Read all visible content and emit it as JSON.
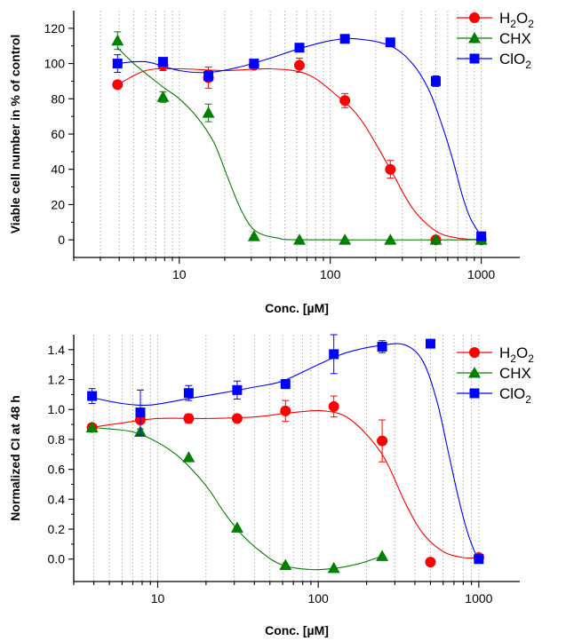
{
  "chart_data": [
    {
      "type": "scatter",
      "xscale": "log",
      "xlim": [
        2,
        1800
      ],
      "ylim": [
        -10,
        130
      ],
      "yticks": [
        0,
        20,
        40,
        60,
        80,
        100,
        120
      ],
      "xticks": [
        10,
        100,
        1000
      ],
      "xtick_labels": [
        "10",
        "100",
        "1000"
      ],
      "xlabel": "Conc. [µM]",
      "ylabel": "Viable cell number in % of control",
      "grid": "vertical minor log lines, dotted",
      "legend": "top-right",
      "series": [
        {
          "name": "H2O2",
          "label_main": "H",
          "label_sub1": "2",
          "label_mid": "O",
          "label_sub2": "2",
          "color": "#ff0000",
          "marker": "circle",
          "x": [
            3.9,
            7.8,
            15.6,
            31.25,
            62.5,
            125,
            250,
            500,
            1000
          ],
          "y": [
            88,
            99,
            92,
            99,
            99,
            79,
            40,
            0,
            0
          ],
          "err": [
            0,
            3,
            6,
            2,
            4,
            4,
            5,
            0,
            0
          ],
          "fit": [
            [
              3.9,
              88
            ],
            [
              6,
              96
            ],
            [
              10,
              97
            ],
            [
              20,
              96
            ],
            [
              40,
              97
            ],
            [
              70,
              94
            ],
            [
              110,
              82
            ],
            [
              160,
              68
            ],
            [
              250,
              40
            ],
            [
              350,
              18
            ],
            [
              500,
              5
            ],
            [
              700,
              1
            ],
            [
              1000,
              0
            ]
          ]
        },
        {
          "name": "CHX",
          "label_main": "CHX",
          "color": "#008000",
          "marker": "triangle",
          "x": [
            3.9,
            7.8,
            15.6,
            31.25,
            62.5,
            125,
            250,
            500,
            1000
          ],
          "y": [
            113,
            81,
            72,
            2,
            0,
            0,
            0,
            0,
            0
          ],
          "err": [
            5,
            3,
            5,
            0,
            0,
            0,
            0,
            0,
            0
          ],
          "fit": [
            [
              3.9,
              109
            ],
            [
              5,
              100
            ],
            [
              6.5,
              92
            ],
            [
              8,
              86
            ],
            [
              10,
              80
            ],
            [
              13,
              70
            ],
            [
              17,
              55
            ],
            [
              21,
              35
            ],
            [
              26,
              16
            ],
            [
              32,
              5
            ],
            [
              45,
              1
            ],
            [
              70,
              0
            ],
            [
              1000,
              0
            ]
          ]
        },
        {
          "name": "ClO2",
          "label_main": "ClO",
          "label_sub1": "2",
          "color": "#0000ff",
          "marker": "square",
          "x": [
            3.9,
            7.8,
            15.6,
            31.25,
            62.5,
            125,
            250,
            500,
            1000
          ],
          "y": [
            100,
            101,
            93,
            100,
            109,
            114,
            112,
            90,
            2
          ],
          "err": [
            5,
            2,
            3,
            2,
            1,
            1,
            1,
            3,
            0
          ],
          "fit": [
            [
              3.9,
              100
            ],
            [
              6,
              101
            ],
            [
              10,
              96
            ],
            [
              16,
              95
            ],
            [
              25,
              98
            ],
            [
              40,
              103
            ],
            [
              60,
              108
            ],
            [
              100,
              113
            ],
            [
              150,
              114
            ],
            [
              250,
              110
            ],
            [
              350,
              100
            ],
            [
              450,
              85
            ],
            [
              550,
              65
            ],
            [
              650,
              45
            ],
            [
              750,
              25
            ],
            [
              850,
              12
            ],
            [
              1000,
              2
            ]
          ]
        }
      ]
    },
    {
      "type": "scatter",
      "xscale": "log",
      "xlim": [
        3,
        1800
      ],
      "ylim": [
        -0.15,
        1.5
      ],
      "yticks": [
        0.0,
        0.2,
        0.4,
        0.6,
        0.8,
        1.0,
        1.2,
        1.4
      ],
      "ytick_labels": [
        "0.0",
        "0.2",
        "0.4",
        "0.6",
        "0.8",
        "1.0",
        "1.2",
        "1.4"
      ],
      "xticks": [
        10,
        100,
        1000
      ],
      "xtick_labels": [
        "10",
        "100",
        "1000"
      ],
      "xlabel": "Conc. [µM]",
      "ylabel": "Normalized CI at 48 h",
      "grid": "vertical minor log lines, dotted",
      "legend": "top-right",
      "series": [
        {
          "name": "H2O2",
          "label_main": "H",
          "label_sub1": "2",
          "label_mid": "O",
          "label_sub2": "2",
          "color": "#ff0000",
          "marker": "circle",
          "x": [
            3.9,
            7.8,
            15.6,
            31.25,
            62.5,
            125,
            250,
            500,
            1000
          ],
          "y": [
            0.88,
            0.93,
            0.94,
            0.94,
            0.99,
            1.02,
            0.79,
            -0.02,
            0.01
          ],
          "err": [
            0.01,
            0.02,
            0.03,
            0.02,
            0.07,
            0.07,
            0.14,
            0,
            0
          ],
          "fit": [
            [
              3.9,
              0.88
            ],
            [
              6,
              0.91
            ],
            [
              10,
              0.94
            ],
            [
              20,
              0.94
            ],
            [
              40,
              0.95
            ],
            [
              70,
              0.98
            ],
            [
              110,
              0.99
            ],
            [
              160,
              0.93
            ],
            [
              250,
              0.7
            ],
            [
              350,
              0.37
            ],
            [
              450,
              0.17
            ],
            [
              600,
              0.05
            ],
            [
              800,
              0.01
            ],
            [
              1000,
              0.01
            ]
          ]
        },
        {
          "name": "CHX",
          "label_main": "CHX",
          "color": "#008000",
          "marker": "triangle",
          "x": [
            3.9,
            7.8,
            15.6,
            31.25,
            62.5,
            125,
            250
          ],
          "y": [
            0.88,
            0.85,
            0.68,
            0.21,
            -0.04,
            -0.06,
            0.02
          ],
          "err": [
            0,
            0.02,
            0,
            0,
            0,
            0,
            0
          ],
          "fit": [
            [
              3.9,
              0.88
            ],
            [
              5,
              0.87
            ],
            [
              7,
              0.85
            ],
            [
              10,
              0.78
            ],
            [
              14,
              0.67
            ],
            [
              20,
              0.49
            ],
            [
              26,
              0.31
            ],
            [
              33,
              0.17
            ],
            [
              45,
              0.04
            ],
            [
              60,
              -0.04
            ],
            [
              90,
              -0.07
            ],
            [
              130,
              -0.06
            ],
            [
              180,
              -0.03
            ],
            [
              250,
              0.02
            ]
          ]
        },
        {
          "name": "ClO2",
          "label_main": "ClO",
          "label_sub1": "2",
          "color": "#0000ff",
          "marker": "square",
          "x": [
            3.9,
            7.8,
            15.6,
            31.25,
            62.5,
            125,
            250,
            500,
            1000
          ],
          "y": [
            1.09,
            0.98,
            1.11,
            1.13,
            1.17,
            1.37,
            1.42,
            1.44,
            0.0
          ],
          "err": [
            0.05,
            0.15,
            0.05,
            0.06,
            0.03,
            0.13,
            0.04,
            0,
            0
          ],
          "fit": [
            [
              3.9,
              1.08
            ],
            [
              6,
              1.04
            ],
            [
              9,
              1.03
            ],
            [
              15,
              1.07
            ],
            [
              25,
              1.11
            ],
            [
              40,
              1.15
            ],
            [
              60,
              1.19
            ],
            [
              100,
              1.3
            ],
            [
              150,
              1.38
            ],
            [
              250,
              1.43
            ],
            [
              350,
              1.43
            ],
            [
              450,
              1.32
            ],
            [
              550,
              1.05
            ],
            [
              650,
              0.7
            ],
            [
              750,
              0.4
            ],
            [
              850,
              0.18
            ],
            [
              950,
              0.04
            ],
            [
              1000,
              0.0
            ]
          ]
        }
      ]
    }
  ]
}
